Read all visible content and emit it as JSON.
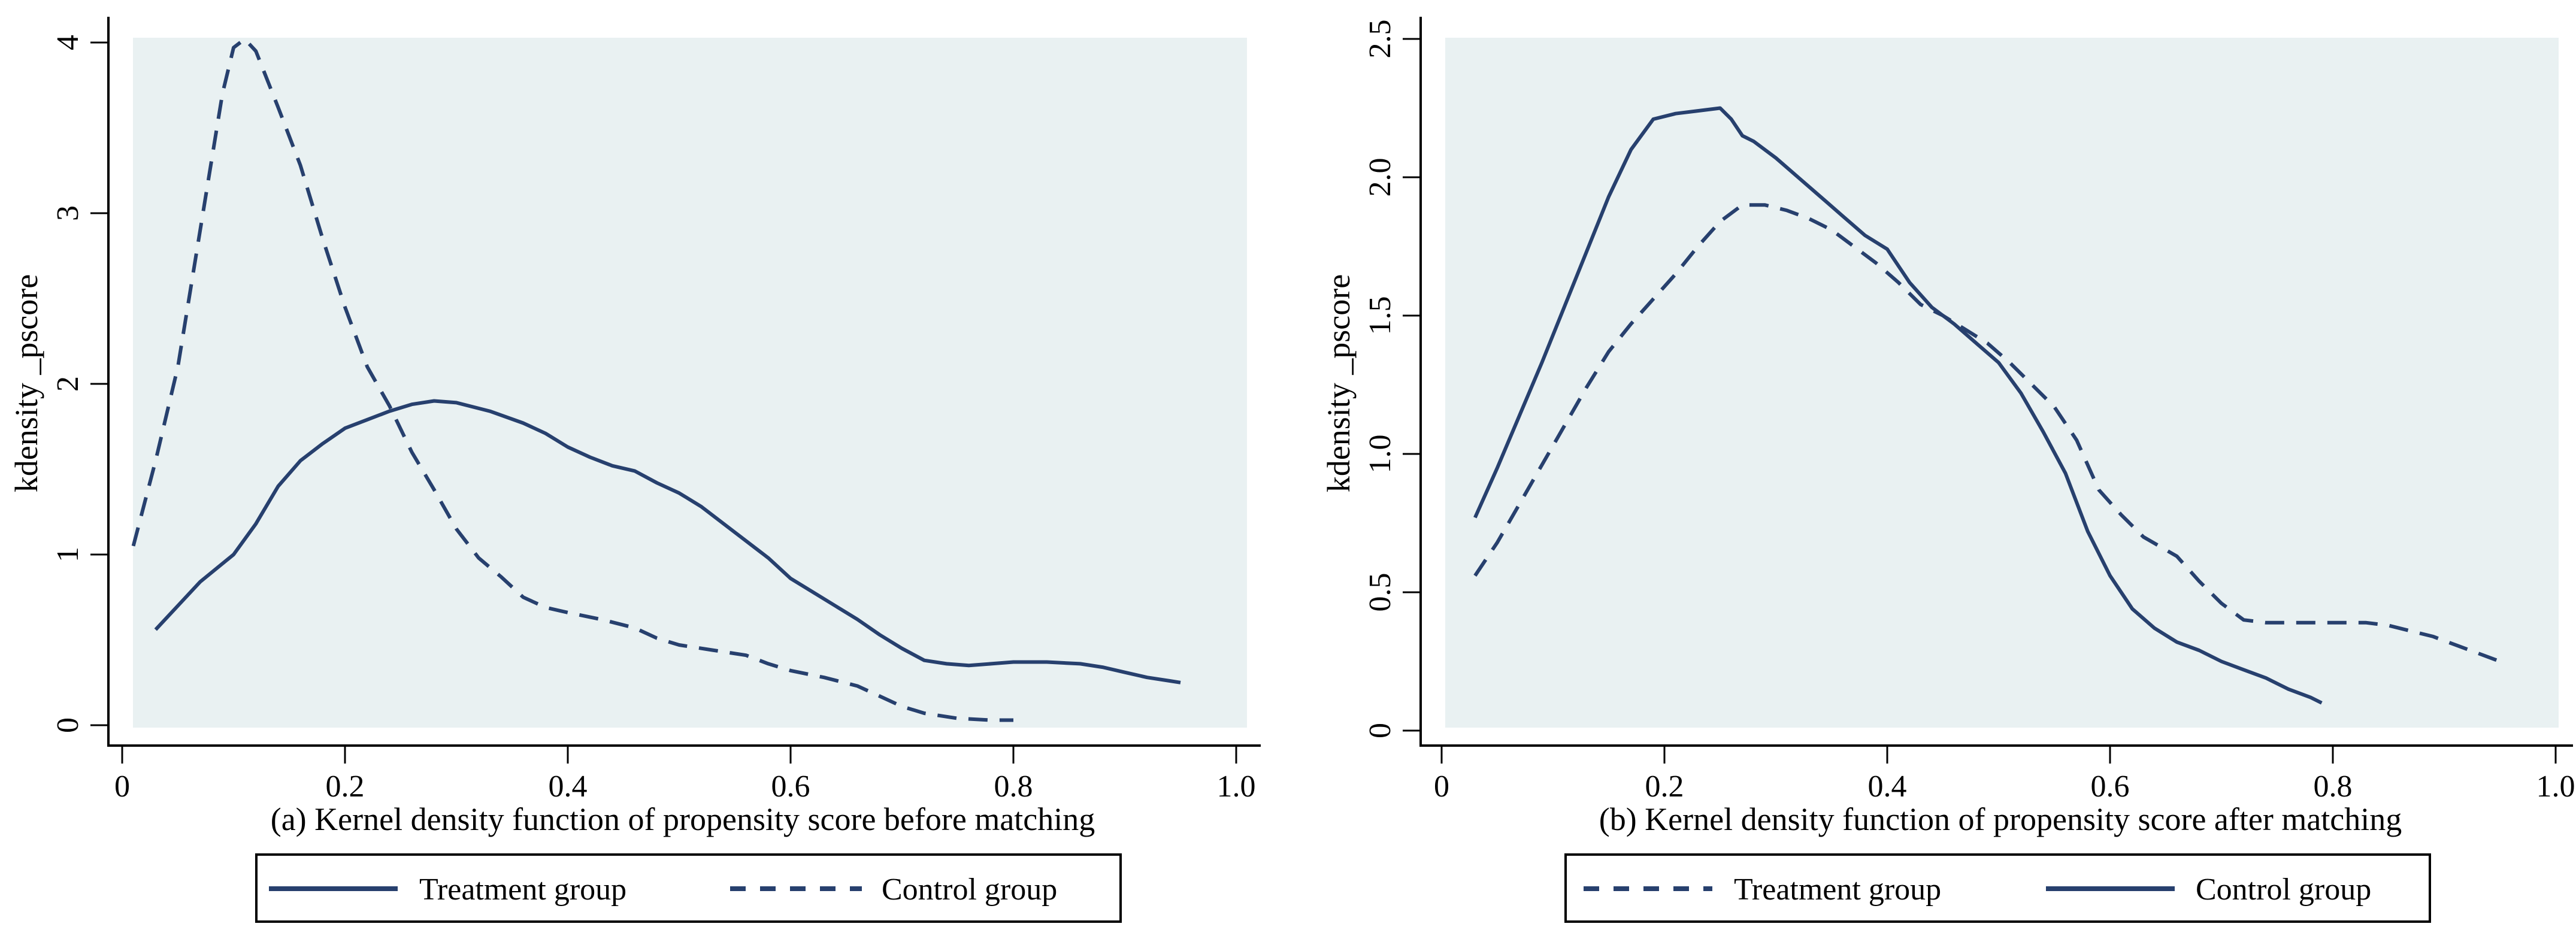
{
  "colors": {
    "line_navy": "#27406e",
    "plot_bg": "#e9f1f2",
    "axis_black": "#000000",
    "page_bg": "#ffffff"
  },
  "panels": [
    {
      "caption": "(a) Kernel density function of propensity score before matching",
      "y_axis_label": "kdensity _pscore",
      "x_tick_labels": [
        "0",
        "0.2",
        "0.4",
        "0.6",
        "0.8",
        "1.0"
      ],
      "y_tick_labels": [
        "0",
        "1",
        "2",
        "3",
        "4"
      ],
      "legend": [
        {
          "label": "Treatment group",
          "style": "solid"
        },
        {
          "label": "Control group",
          "style": "dashed"
        }
      ]
    },
    {
      "caption": "(b) Kernel density function of propensity score after matching",
      "y_axis_label": "kdensity _pscore",
      "x_tick_labels": [
        "0",
        "0.2",
        "0.4",
        "0.6",
        "0.8",
        "1.0"
      ],
      "y_tick_labels": [
        "0",
        "0.5",
        "1.0",
        "1.5",
        "2.0",
        "2.5"
      ],
      "legend": [
        {
          "label": "Treatment group",
          "style": "dashed"
        },
        {
          "label": "Control group",
          "style": "solid"
        }
      ]
    }
  ],
  "chart_data": [
    {
      "type": "line",
      "title": "(a) Kernel density function of propensity score before matching",
      "xlabel": "",
      "ylabel": "kdensity _pscore",
      "xlim": [
        0,
        1.0
      ],
      "ylim": [
        0,
        4
      ],
      "x_ticks": [
        0,
        0.2,
        0.4,
        0.6,
        0.8,
        1.0
      ],
      "y_ticks": [
        0,
        1,
        2,
        3,
        4
      ],
      "grid": false,
      "legend_position": "bottom",
      "series": [
        {
          "name": "Treatment group",
          "line_style": "solid",
          "points": [
            [
              0.03,
              0.56
            ],
            [
              0.05,
              0.7
            ],
            [
              0.07,
              0.84
            ],
            [
              0.1,
              1.0
            ],
            [
              0.12,
              1.18
            ],
            [
              0.14,
              1.4
            ],
            [
              0.16,
              1.55
            ],
            [
              0.18,
              1.65
            ],
            [
              0.2,
              1.74
            ],
            [
              0.22,
              1.79
            ],
            [
              0.24,
              1.84
            ],
            [
              0.26,
              1.88
            ],
            [
              0.28,
              1.9
            ],
            [
              0.3,
              1.89
            ],
            [
              0.33,
              1.84
            ],
            [
              0.36,
              1.77
            ],
            [
              0.38,
              1.71
            ],
            [
              0.4,
              1.63
            ],
            [
              0.42,
              1.57
            ],
            [
              0.44,
              1.52
            ],
            [
              0.46,
              1.49
            ],
            [
              0.48,
              1.42
            ],
            [
              0.5,
              1.36
            ],
            [
              0.52,
              1.28
            ],
            [
              0.55,
              1.13
            ],
            [
              0.58,
              0.98
            ],
            [
              0.6,
              0.86
            ],
            [
              0.62,
              0.78
            ],
            [
              0.64,
              0.7
            ],
            [
              0.66,
              0.62
            ],
            [
              0.68,
              0.53
            ],
            [
              0.7,
              0.45
            ],
            [
              0.72,
              0.38
            ],
            [
              0.74,
              0.36
            ],
            [
              0.76,
              0.35
            ],
            [
              0.78,
              0.36
            ],
            [
              0.8,
              0.37
            ],
            [
              0.83,
              0.37
            ],
            [
              0.86,
              0.36
            ],
            [
              0.88,
              0.34
            ],
            [
              0.9,
              0.31
            ],
            [
              0.92,
              0.28
            ],
            [
              0.94,
              0.26
            ],
            [
              0.95,
              0.25
            ]
          ]
        },
        {
          "name": "Control group",
          "line_style": "dashed",
          "points": [
            [
              0.01,
              1.05
            ],
            [
              0.03,
              1.55
            ],
            [
              0.05,
              2.1
            ],
            [
              0.07,
              2.9
            ],
            [
              0.08,
              3.3
            ],
            [
              0.09,
              3.7
            ],
            [
              0.1,
              3.97
            ],
            [
              0.11,
              4.02
            ],
            [
              0.12,
              3.95
            ],
            [
              0.14,
              3.62
            ],
            [
              0.16,
              3.28
            ],
            [
              0.18,
              2.85
            ],
            [
              0.2,
              2.45
            ],
            [
              0.22,
              2.1
            ],
            [
              0.24,
              1.87
            ],
            [
              0.26,
              1.6
            ],
            [
              0.28,
              1.38
            ],
            [
              0.3,
              1.15
            ],
            [
              0.32,
              0.98
            ],
            [
              0.34,
              0.87
            ],
            [
              0.36,
              0.75
            ],
            [
              0.38,
              0.69
            ],
            [
              0.4,
              0.66
            ],
            [
              0.43,
              0.62
            ],
            [
              0.46,
              0.57
            ],
            [
              0.48,
              0.51
            ],
            [
              0.5,
              0.47
            ],
            [
              0.53,
              0.44
            ],
            [
              0.56,
              0.41
            ],
            [
              0.58,
              0.36
            ],
            [
              0.6,
              0.32
            ],
            [
              0.63,
              0.28
            ],
            [
              0.66,
              0.23
            ],
            [
              0.68,
              0.17
            ],
            [
              0.7,
              0.11
            ],
            [
              0.72,
              0.07
            ],
            [
              0.75,
              0.04
            ],
            [
              0.78,
              0.03
            ],
            [
              0.8,
              0.03
            ]
          ]
        }
      ]
    },
    {
      "type": "line",
      "title": "(b) Kernel density function of propensity score after matching",
      "xlabel": "",
      "ylabel": "kdensity _pscore",
      "xlim": [
        0,
        1.0
      ],
      "ylim": [
        0,
        2.5
      ],
      "x_ticks": [
        0,
        0.2,
        0.4,
        0.6,
        0.8,
        1.0
      ],
      "y_ticks": [
        0,
        0.5,
        1.0,
        1.5,
        2.0,
        2.5
      ],
      "grid": false,
      "legend_position": "bottom",
      "series": [
        {
          "name": "Treatment group",
          "line_style": "dashed",
          "points": [
            [
              0.03,
              0.56
            ],
            [
              0.05,
              0.68
            ],
            [
              0.07,
              0.82
            ],
            [
              0.09,
              0.96
            ],
            [
              0.11,
              1.1
            ],
            [
              0.13,
              1.24
            ],
            [
              0.15,
              1.37
            ],
            [
              0.17,
              1.47
            ],
            [
              0.19,
              1.56
            ],
            [
              0.21,
              1.65
            ],
            [
              0.23,
              1.75
            ],
            [
              0.25,
              1.84
            ],
            [
              0.27,
              1.9
            ],
            [
              0.29,
              1.9
            ],
            [
              0.31,
              1.88
            ],
            [
              0.33,
              1.85
            ],
            [
              0.35,
              1.81
            ],
            [
              0.37,
              1.75
            ],
            [
              0.39,
              1.69
            ],
            [
              0.41,
              1.62
            ],
            [
              0.43,
              1.54
            ],
            [
              0.45,
              1.5
            ],
            [
              0.47,
              1.45
            ],
            [
              0.49,
              1.4
            ],
            [
              0.51,
              1.33
            ],
            [
              0.53,
              1.25
            ],
            [
              0.55,
              1.17
            ],
            [
              0.57,
              1.05
            ],
            [
              0.59,
              0.87
            ],
            [
              0.61,
              0.78
            ],
            [
              0.63,
              0.7
            ],
            [
              0.66,
              0.63
            ],
            [
              0.68,
              0.54
            ],
            [
              0.7,
              0.46
            ],
            [
              0.72,
              0.4
            ],
            [
              0.74,
              0.39
            ],
            [
              0.77,
              0.39
            ],
            [
              0.8,
              0.39
            ],
            [
              0.83,
              0.39
            ],
            [
              0.85,
              0.38
            ],
            [
              0.87,
              0.36
            ],
            [
              0.89,
              0.34
            ],
            [
              0.91,
              0.31
            ],
            [
              0.93,
              0.28
            ],
            [
              0.95,
              0.25
            ]
          ]
        },
        {
          "name": "Control group",
          "line_style": "solid",
          "points": [
            [
              0.03,
              0.77
            ],
            [
              0.05,
              0.95
            ],
            [
              0.07,
              1.14
            ],
            [
              0.09,
              1.33
            ],
            [
              0.11,
              1.53
            ],
            [
              0.13,
              1.73
            ],
            [
              0.15,
              1.93
            ],
            [
              0.17,
              2.1
            ],
            [
              0.19,
              2.21
            ],
            [
              0.21,
              2.23
            ],
            [
              0.23,
              2.24
            ],
            [
              0.25,
              2.25
            ],
            [
              0.26,
              2.21
            ],
            [
              0.27,
              2.15
            ],
            [
              0.28,
              2.13
            ],
            [
              0.3,
              2.07
            ],
            [
              0.32,
              2.0
            ],
            [
              0.34,
              1.93
            ],
            [
              0.36,
              1.86
            ],
            [
              0.38,
              1.79
            ],
            [
              0.4,
              1.74
            ],
            [
              0.42,
              1.62
            ],
            [
              0.44,
              1.53
            ],
            [
              0.46,
              1.47
            ],
            [
              0.48,
              1.4
            ],
            [
              0.5,
              1.33
            ],
            [
              0.52,
              1.22
            ],
            [
              0.54,
              1.08
            ],
            [
              0.56,
              0.93
            ],
            [
              0.58,
              0.72
            ],
            [
              0.6,
              0.56
            ],
            [
              0.62,
              0.44
            ],
            [
              0.64,
              0.37
            ],
            [
              0.66,
              0.32
            ],
            [
              0.68,
              0.29
            ],
            [
              0.7,
              0.25
            ],
            [
              0.72,
              0.22
            ],
            [
              0.74,
              0.19
            ],
            [
              0.76,
              0.15
            ],
            [
              0.78,
              0.12
            ],
            [
              0.79,
              0.1
            ]
          ]
        }
      ]
    }
  ]
}
